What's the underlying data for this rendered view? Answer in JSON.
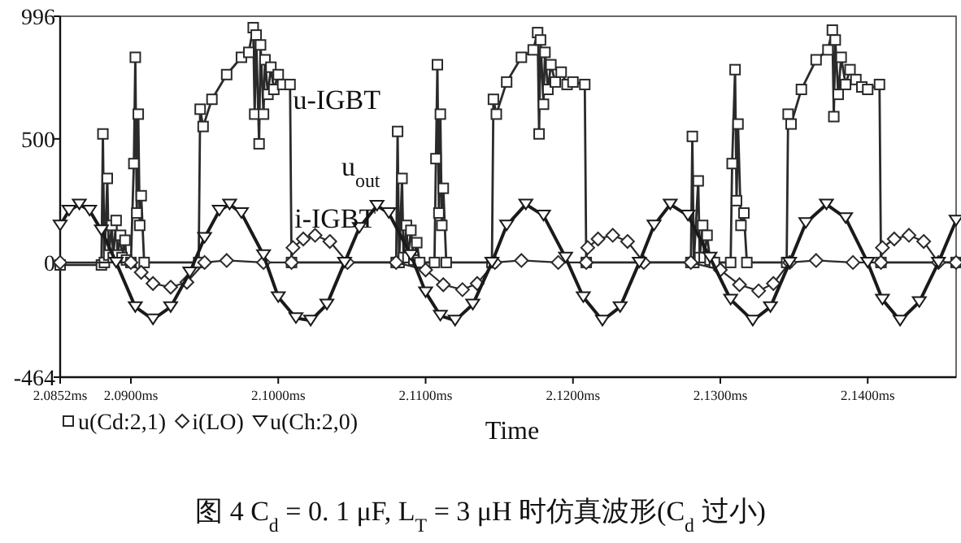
{
  "chart_data": {
    "type": "line",
    "xlabel": "Time",
    "xlim": [
      2.0852,
      2.146
    ],
    "ylim": [
      -464,
      996
    ],
    "xticks": [
      {
        "value": 2.0852,
        "label": "2.0852ms"
      },
      {
        "value": 2.09,
        "label": "2.0900ms"
      },
      {
        "value": 2.1,
        "label": "2.1000ms"
      },
      {
        "value": 2.11,
        "label": "2.1100ms"
      },
      {
        "value": 2.12,
        "label": "2.1200ms"
      },
      {
        "value": 2.13,
        "label": "2.1300ms"
      },
      {
        "value": 2.14,
        "label": "2.1400ms"
      }
    ],
    "yticks": [
      996,
      500,
      0,
      -464
    ],
    "grid": false,
    "legend": "bottom left",
    "line_style": "solid",
    "series": [
      {
        "name": "u(Cd:2,1)",
        "color": "#2a2a2a",
        "marker": "square",
        "x": [
          2.0852,
          2.088,
          2.0881,
          2.0882,
          2.0884,
          2.0885,
          2.0887,
          2.0888,
          2.089,
          2.0891,
          2.0893,
          2.0894,
          2.0896,
          2.0897,
          2.09,
          2.0902,
          2.0903,
          2.0904,
          2.0905,
          2.0906,
          2.0907,
          2.0909,
          2.0946,
          2.0947,
          2.0949,
          2.0955,
          2.0965,
          2.0975,
          2.098,
          2.0983,
          2.0984,
          2.0985,
          2.0987,
          2.0988,
          2.099,
          2.0991,
          2.0993,
          2.0995,
          2.0997,
          2.1,
          2.1003,
          2.1008,
          2.1009,
          2.108,
          2.1081,
          2.1082,
          2.1084,
          2.1085,
          2.1087,
          2.1088,
          2.109,
          2.1092,
          2.1094,
          2.1096,
          2.1106,
          2.1107,
          2.1108,
          2.1109,
          2.111,
          2.1111,
          2.1112,
          2.1114,
          2.1145,
          2.1146,
          2.1148,
          2.1155,
          2.1165,
          2.1173,
          2.1176,
          2.1177,
          2.1178,
          2.118,
          2.1181,
          2.1183,
          2.1185,
          2.1188,
          2.1192,
          2.1196,
          2.12,
          2.1208,
          2.1209,
          2.128,
          2.1281,
          2.1282,
          2.1285,
          2.1286,
          2.1288,
          2.1289,
          2.1291,
          2.1293,
          2.1296,
          2.1307,
          2.1308,
          2.131,
          2.1311,
          2.1312,
          2.1314,
          2.1316,
          2.1318,
          2.1345,
          2.1346,
          2.1348,
          2.1355,
          2.1365,
          2.1373,
          2.1376,
          2.1377,
          2.1378,
          2.138,
          2.1382,
          2.1385,
          2.1388,
          2.1392,
          2.1396,
          2.14,
          2.1408,
          2.1409,
          2.146
        ],
        "values": [
          -10,
          -10,
          520,
          0,
          340,
          30,
          150,
          20,
          170,
          30,
          110,
          20,
          90,
          10,
          0,
          400,
          830,
          200,
          600,
          150,
          270,
          0,
          0,
          620,
          550,
          660,
          760,
          830,
          850,
          950,
          600,
          920,
          480,
          880,
          600,
          820,
          680,
          790,
          700,
          760,
          720,
          720,
          0,
          0,
          530,
          0,
          340,
          20,
          150,
          20,
          130,
          10,
          80,
          0,
          0,
          420,
          800,
          200,
          600,
          150,
          300,
          0,
          0,
          660,
          600,
          730,
          830,
          860,
          930,
          520,
          900,
          640,
          850,
          700,
          800,
          730,
          770,
          720,
          730,
          720,
          0,
          0,
          510,
          0,
          330,
          20,
          150,
          20,
          110,
          10,
          0,
          0,
          400,
          780,
          250,
          560,
          150,
          200,
          0,
          0,
          600,
          560,
          700,
          820,
          860,
          940,
          590,
          900,
          680,
          830,
          720,
          780,
          740,
          710,
          700,
          720,
          0,
          0
        ]
      },
      {
        "name": "i(LO)",
        "color": "#2a2a2a",
        "marker": "diamond",
        "x": [
          2.0852,
          2.09,
          2.0907,
          2.0915,
          2.0927,
          2.0938,
          2.095,
          2.0965,
          2.099,
          2.1009,
          2.101,
          2.1017,
          2.1025,
          2.1035,
          2.1047,
          2.108,
          2.11,
          2.1112,
          2.1125,
          2.1135,
          2.1147,
          2.1165,
          2.119,
          2.1209,
          2.121,
          2.1217,
          2.1227,
          2.1237,
          2.1248,
          2.128,
          2.13,
          2.1313,
          2.1326,
          2.1336,
          2.1347,
          2.1365,
          2.139,
          2.1409,
          2.141,
          2.1418,
          2.1428,
          2.1438,
          2.1448,
          2.146
        ],
        "values": [
          0,
          0,
          -40,
          -85,
          -100,
          -80,
          0,
          8,
          0,
          0,
          60,
          95,
          110,
          85,
          0,
          0,
          -30,
          -90,
          -110,
          -85,
          0,
          8,
          0,
          0,
          60,
          95,
          110,
          85,
          0,
          0,
          -30,
          -90,
          -115,
          -85,
          0,
          8,
          0,
          0,
          60,
          95,
          110,
          85,
          0,
          0
        ]
      },
      {
        "name": "u(Ch:2,0)",
        "color": "#1a1a1a",
        "marker": "triangle",
        "x": [
          2.0852,
          2.0858,
          2.0865,
          2.0872,
          2.088,
          2.089,
          2.0903,
          2.0915,
          2.0927,
          2.094,
          2.095,
          2.096,
          2.0967,
          2.0975,
          2.099,
          2.1,
          2.1012,
          2.1022,
          2.1033,
          2.1045,
          2.1055,
          2.1067,
          2.1075,
          2.109,
          2.11,
          2.111,
          2.112,
          2.1132,
          2.1145,
          2.1155,
          2.1168,
          2.118,
          2.1195,
          2.1207,
          2.122,
          2.1232,
          2.1245,
          2.1255,
          2.1266,
          2.1278,
          2.1293,
          2.1307,
          2.1322,
          2.1334,
          2.1347,
          2.1358,
          2.1372,
          2.1385,
          2.14,
          2.141,
          2.1422,
          2.1435,
          2.1448,
          2.146
        ],
        "values": [
          150,
          210,
          235,
          210,
          130,
          0,
          -180,
          -230,
          -180,
          -40,
          100,
          210,
          235,
          200,
          30,
          -140,
          -225,
          -235,
          -170,
          0,
          140,
          230,
          200,
          30,
          -120,
          -215,
          -235,
          -170,
          0,
          150,
          235,
          190,
          20,
          -140,
          -235,
          -180,
          0,
          150,
          235,
          190,
          20,
          -150,
          -235,
          -180,
          0,
          160,
          235,
          180,
          0,
          -150,
          -235,
          -160,
          0,
          170
        ]
      }
    ],
    "annotations": [
      {
        "text": "u-IGBT",
        "x": 2.101,
        "y": 620
      },
      "u$_{out}$",
      {
        "text": "i-IGBT",
        "x": 2.1011,
        "y": 140
      },
      "图 4    C$_{d}$ = 0. 1 μF, L$_{T}$ = 3 μH 时仿真波形(C$_{d}$ 过小)"
    ]
  }
}
